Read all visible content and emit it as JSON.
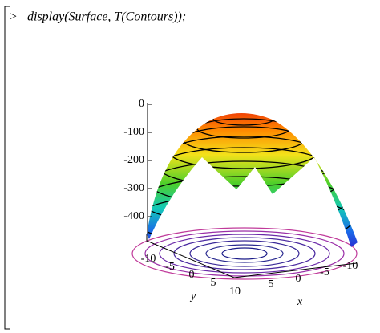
{
  "prompt": ">",
  "command": "display(Surface, T(Contours));",
  "plot": {
    "z_ticks": [
      0,
      -100,
      -200,
      -300,
      -400
    ],
    "y_ticks": [
      -10,
      -5,
      0,
      5,
      10
    ],
    "x_ticks": [
      5,
      0,
      -5,
      -10
    ],
    "y_label": "y",
    "x_label": "x"
  }
}
